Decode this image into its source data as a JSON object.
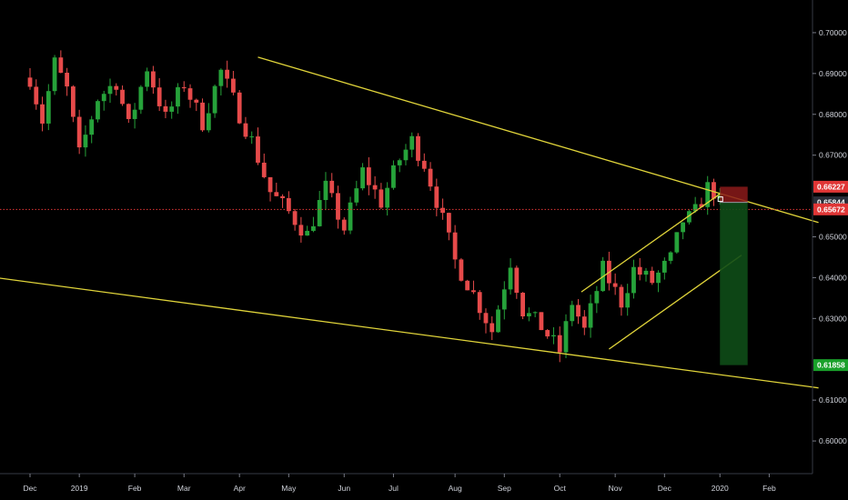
{
  "chart_data": {
    "type": "candlestick",
    "title": "",
    "xlabel": "",
    "ylabel": "",
    "ylim": [
      0.592,
      0.708
    ],
    "grid": false,
    "x_ticks": [
      "Dec",
      "2019",
      "Feb",
      "Mar",
      "Apr",
      "May",
      "Jun",
      "Jul",
      "Aug",
      "Sep",
      "Oct",
      "Nov",
      "Dec",
      "2020",
      "Feb"
    ],
    "x_tick_weeks": [
      0,
      8,
      17,
      25,
      34,
      42,
      51,
      59,
      69,
      77,
      86,
      95,
      103,
      112,
      120
    ],
    "y_ticks": [
      {
        "value": 0.7,
        "label": "0.70000"
      },
      {
        "value": 0.69,
        "label": "0.69000"
      },
      {
        "value": 0.68,
        "label": "0.68000"
      },
      {
        "value": 0.67,
        "label": "0.67000"
      },
      {
        "value": 0.65,
        "label": "0.65000"
      },
      {
        "value": 0.64,
        "label": "0.64000"
      },
      {
        "value": 0.63,
        "label": "0.63000"
      },
      {
        "value": 0.61,
        "label": "0.61000"
      },
      {
        "value": 0.6,
        "label": "0.60000"
      }
    ],
    "price_badges": [
      {
        "label": "0.66227",
        "value": 0.66227,
        "color": "#e03636"
      },
      {
        "label": "0.65844",
        "value": 0.65844,
        "color": "#2a2e39"
      },
      {
        "label": "0.65672",
        "value": 0.65672,
        "color": "#e03636"
      },
      {
        "label": "0.61858",
        "value": 0.61858,
        "color": "#19a02a"
      }
    ],
    "current_price": 0.65672,
    "candle_colors": {
      "up": "#26a23a",
      "down": "#e64a4a"
    },
    "trendline_color": "#e0d43a",
    "trendlines": [
      {
        "name": "upper-channel",
        "x": [
          37,
          128
        ],
        "y": [
          0.694,
          0.6535
        ]
      },
      {
        "name": "lower-channel",
        "x": [
          -5.5,
          128
        ],
        "y": [
          0.64,
          0.613
        ]
      },
      {
        "name": "rising-channel-top",
        "x": [
          89.5,
          112
        ],
        "y": [
          0.6365,
          0.6605
        ]
      },
      {
        "name": "rising-channel-bottom",
        "x": [
          94,
          115.5
        ],
        "y": [
          0.6225,
          0.6455
        ]
      }
    ],
    "position": {
      "entry": 0.65844,
      "stop": 0.66227,
      "target": 0.61858,
      "x_start": 112,
      "x_end": 116.5,
      "stop_color": "#8b1a1a",
      "target_color": "#0e4d17"
    },
    "series_anchors": {
      "week": [
        0,
        2,
        4,
        6,
        8,
        11,
        14,
        16,
        19,
        22,
        25,
        28,
        31,
        34,
        36,
        39,
        42,
        45,
        48,
        51,
        54,
        57,
        60,
        62,
        64,
        66,
        69,
        72,
        75,
        78,
        80,
        83,
        86,
        88,
        90,
        93,
        96,
        98,
        101,
        104,
        106,
        107,
        108,
        110,
        111,
        112
      ],
      "price": [
        0.689,
        0.6785,
        0.6925,
        0.686,
        0.67,
        0.684,
        0.688,
        0.677,
        0.6915,
        0.679,
        0.6875,
        0.678,
        0.6905,
        0.68,
        0.6735,
        0.661,
        0.656,
        0.6505,
        0.662,
        0.652,
        0.666,
        0.6585,
        0.669,
        0.6735,
        0.668,
        0.659,
        0.644,
        0.636,
        0.627,
        0.644,
        0.632,
        0.628,
        0.622,
        0.634,
        0.627,
        0.642,
        0.634,
        0.642,
        0.639,
        0.6445,
        0.654,
        0.6545,
        0.656,
        0.662,
        0.661,
        0.6585
      ]
    },
    "candle_count": 113
  }
}
